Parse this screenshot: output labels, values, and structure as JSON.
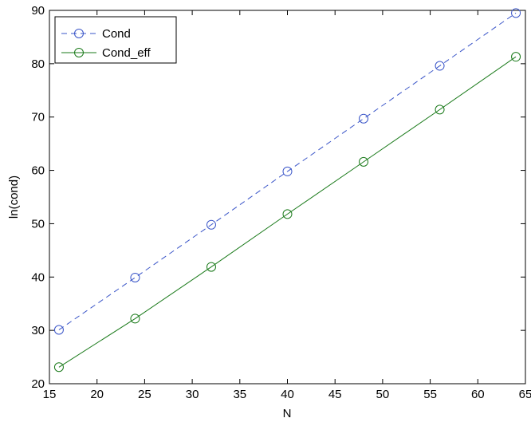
{
  "chart_data": {
    "type": "line",
    "xlabel": "N",
    "ylabel": "ln(cond)",
    "xlim": [
      15,
      65
    ],
    "ylim": [
      20,
      90
    ],
    "xticks": [
      15,
      20,
      25,
      30,
      35,
      40,
      45,
      50,
      55,
      60,
      65
    ],
    "yticks": [
      20,
      30,
      40,
      50,
      60,
      70,
      80,
      90
    ],
    "grid": false,
    "legend_position": "top-left",
    "x": [
      16,
      24,
      32,
      40,
      48,
      56,
      64
    ],
    "series": [
      {
        "name": "Cond",
        "values": [
          30.1,
          39.9,
          49.8,
          59.8,
          69.7,
          79.6,
          89.5
        ],
        "color": "#3a55c8",
        "line_style": "dashed",
        "marker": "circle"
      },
      {
        "name": "Cond_eff",
        "values": [
          23.1,
          32.2,
          41.9,
          51.8,
          61.6,
          71.4,
          81.3
        ],
        "color": "#1a7a1a",
        "line_style": "solid",
        "marker": "circle"
      }
    ]
  }
}
